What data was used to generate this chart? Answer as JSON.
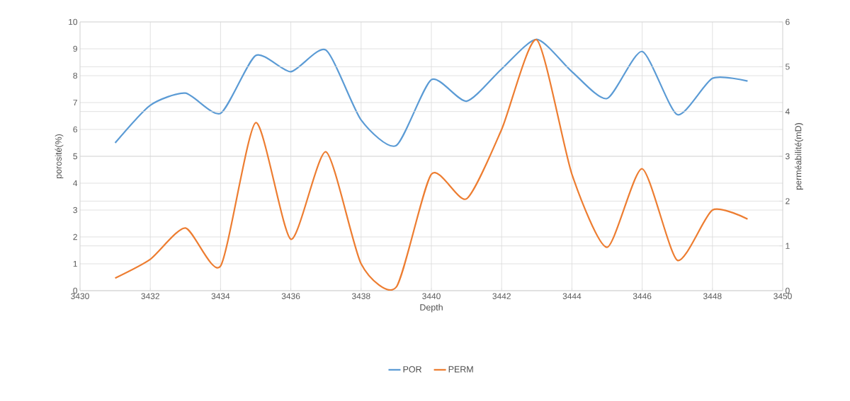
{
  "chart_data": {
    "type": "line",
    "xlabel": "Depth",
    "ylabel": "porosité(%)",
    "y2label": "perméabilité(mD)",
    "x": [
      3431,
      3432,
      3433,
      3434,
      3435,
      3436,
      3437,
      3438,
      3439,
      3440,
      3441,
      3442,
      3443,
      3444,
      3445,
      3446,
      3447,
      3448,
      3449
    ],
    "series": [
      {
        "name": "POR",
        "color": "#5b9bd5",
        "values": [
          5.5,
          6.9,
          7.35,
          6.6,
          8.75,
          8.15,
          8.95,
          6.35,
          5.4,
          7.85,
          7.05,
          8.25,
          9.35,
          8.15,
          7.15,
          8.9,
          6.55,
          7.9,
          7.8
        ]
      },
      {
        "name": "PERM",
        "color": "#ed7d31",
        "axis": "y2",
        "values": [
          0.28,
          0.7,
          1.4,
          0.55,
          3.75,
          1.15,
          3.1,
          0.6,
          0.08,
          2.6,
          2.05,
          3.6,
          5.6,
          2.6,
          0.97,
          2.72,
          0.68,
          1.8,
          1.6
        ]
      }
    ],
    "xlim": [
      3430,
      3450
    ],
    "xticks": [
      3430,
      3432,
      3434,
      3436,
      3438,
      3440,
      3442,
      3444,
      3446,
      3448,
      3450
    ],
    "ylim": [
      0,
      10
    ],
    "yticks": [
      0,
      1,
      2,
      3,
      4,
      5,
      6,
      7,
      8,
      9,
      10
    ],
    "y2lim": [
      0,
      6
    ],
    "y2ticks": [
      0,
      1,
      2,
      3,
      4,
      5,
      6
    ],
    "grid": true,
    "legend": "bottom"
  }
}
